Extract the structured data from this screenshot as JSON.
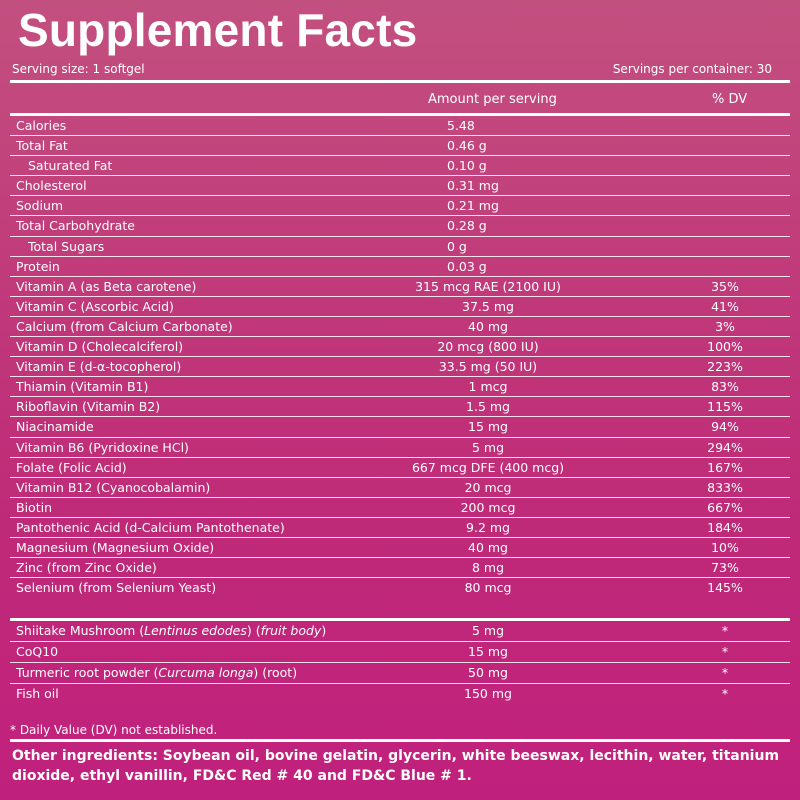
{
  "label": {
    "title": "Supplement Facts",
    "serving_size": "Serving size: 1 softgel",
    "servings_per_container": "Servings per container: 30",
    "col_amount": "Amount per serving",
    "col_dv": "% DV"
  },
  "macros": [
    {
      "name": "Calories",
      "amount": "5.48",
      "dv": ""
    },
    {
      "name": "Total Fat",
      "amount": "0.46 g",
      "dv": ""
    },
    {
      "name": "Saturated Fat",
      "amount": "0.10 g",
      "dv": ""
    },
    {
      "name": "Cholesterol",
      "amount": "0.31 mg",
      "dv": ""
    },
    {
      "name": "Sodium",
      "amount": "0.21 mg",
      "dv": ""
    },
    {
      "name": "Total Carbohydrate",
      "amount": "0.28 g",
      "dv": ""
    },
    {
      "name": "Total Sugars",
      "amount": "0 g",
      "dv": ""
    },
    {
      "name": "Protein",
      "amount": "0.03 g",
      "dv": ""
    }
  ],
  "vitamins": [
    {
      "name": "Vitamin A (as Beta carotene)",
      "amount": "315 mcg RAE (2100 IU)",
      "dv": "35%"
    },
    {
      "name": "Vitamin C (Ascorbic Acid)",
      "amount": "37.5 mg",
      "dv": "41%"
    },
    {
      "name": "Calcium (from Calcium Carbonate)",
      "amount": "40 mg",
      "dv": "3%"
    },
    {
      "name": "Vitamin D (Cholecalciferol)",
      "amount": "20 mcg (800 IU)",
      "dv": "100%"
    },
    {
      "name": "Vitamin E (d-α-tocopherol)",
      "amount": "33.5 mg (50 IU)",
      "dv": "223%"
    },
    {
      "name": "Thiamin (Vitamin B1)",
      "amount": "1 mcg",
      "dv": "83%"
    },
    {
      "name": "Riboflavin (Vitamin B2)",
      "amount": "1.5 mg",
      "dv": "115%"
    },
    {
      "name": "Niacinamide",
      "amount": "15 mg",
      "dv": "94%"
    },
    {
      "name": "Vitamin B6 (Pyridoxine HCl)",
      "amount": "5 mg",
      "dv": "294%"
    },
    {
      "name": "Folate (Folic Acid)",
      "amount": "667 mcg DFE (400 mcg)",
      "dv": "167%"
    },
    {
      "name": "Vitamin B12 (Cyanocobalamin)",
      "amount": "20 mcg",
      "dv": "833%"
    },
    {
      "name": "Biotin",
      "amount": "200 mcg",
      "dv": "667%"
    },
    {
      "name": "Pantothenic Acid (d-Calcium Pantothenate)",
      "amount": "9.2 mg",
      "dv": "184%"
    },
    {
      "name": "Magnesium (Magnesium Oxide)",
      "amount": "40 mg",
      "dv": "10%"
    },
    {
      "name": "Zinc (from Zinc Oxide)",
      "amount": "8 mg",
      "dv": "73%"
    },
    {
      "name": "Selenium (from Selenium Yeast)",
      "amount": "80 mcg",
      "dv": "145%"
    }
  ],
  "others": [
    {
      "name_start": "Shiitake Mushroom (",
      "name_italic": "Lentinus edodes",
      "name_mid": ") (",
      "name_italic2": "fruit body",
      "name_end": ")",
      "amount": "5 mg",
      "dv": "*"
    },
    {
      "name_start": "CoQ10",
      "name_italic": "",
      "name_mid": "",
      "name_italic2": "",
      "name_end": "",
      "amount": "15 mg",
      "dv": "*"
    },
    {
      "name_start": "Turmeric root powder (",
      "name_italic": "Curcuma longa",
      "name_mid": ") (root)",
      "name_italic2": "",
      "name_end": "",
      "amount": "50 mg",
      "dv": "*"
    },
    {
      "name_start": "Fish oil",
      "name_italic": "",
      "name_mid": "",
      "name_italic2": "",
      "name_end": "",
      "amount": "150 mg",
      "dv": "*"
    }
  ],
  "footnote": "* Daily Value (DV) not established.",
  "other_ingredients": "Other ingredients: Soybean oil, bovine gelatin, glycerin, white beeswax, lecithin, water, titanium dioxide, ethyl vanillin, FD&C Red # 40 and FD&C Blue # 1."
}
